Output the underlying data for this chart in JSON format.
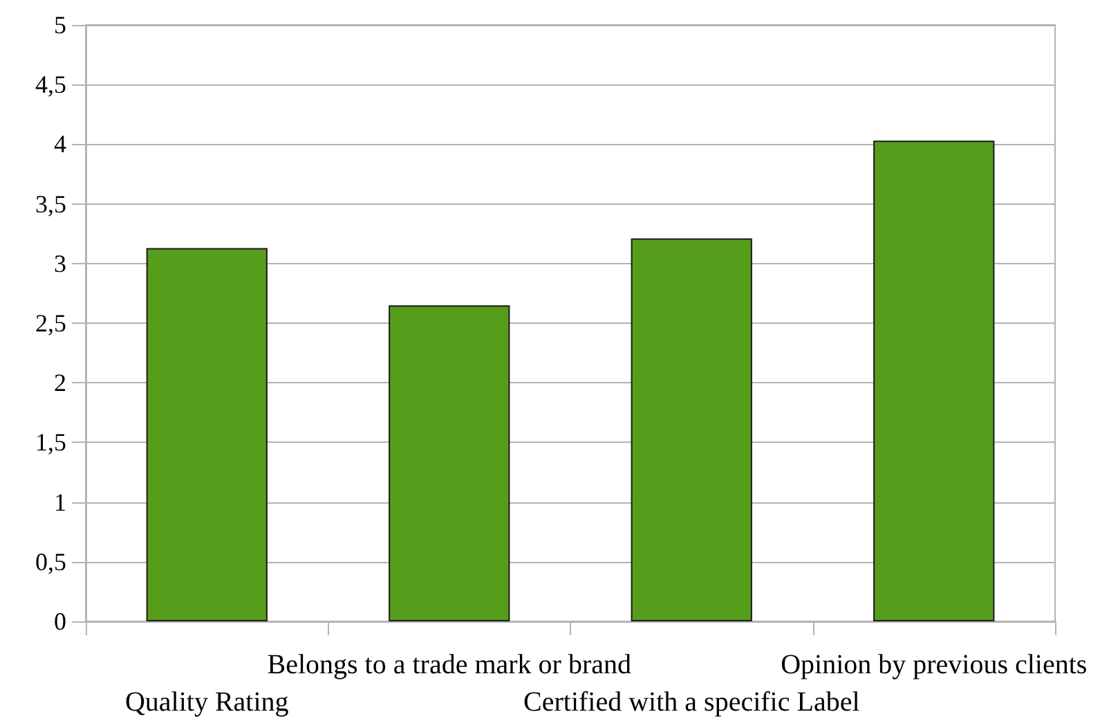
{
  "chart_data": {
    "type": "bar",
    "categories": [
      "Quality Rating",
      "Belongs to a trade mark or brand",
      "Certified with a specific Label",
      "Opinion by previous clients"
    ],
    "values": [
      3.13,
      2.65,
      3.21,
      4.03
    ],
    "color": "#579d1c",
    "ylim": [
      0,
      5
    ],
    "yticks": [
      0,
      {
        "value": 0.5,
        "label": "0,5"
      },
      1,
      {
        "value": 1.5,
        "label": "1,5"
      },
      2,
      {
        "value": 2.5,
        "label": "2,5"
      },
      3,
      {
        "value": 3.5,
        "label": "3,5"
      },
      4,
      {
        "value": 4.5,
        "label": "4,5"
      },
      5
    ],
    "grid": "y"
  }
}
